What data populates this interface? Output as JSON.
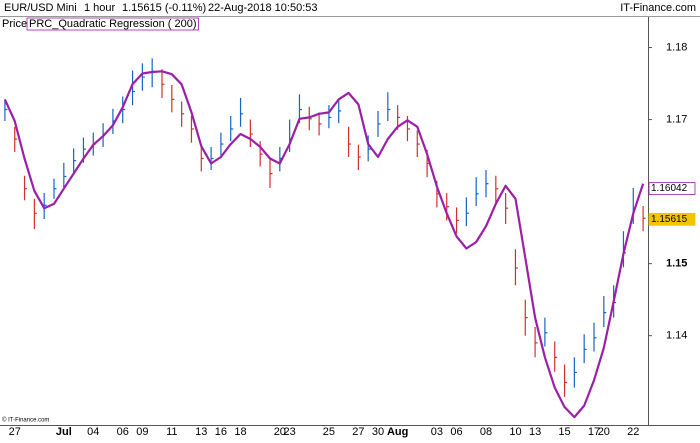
{
  "header": {
    "instrument": "EUR/USD Mini",
    "timeframe": "1 hour",
    "quote": "1.15615 (-0.11%)",
    "datetime": "22-Aug-2018 10:50:53",
    "brand": "IT-Finance.com"
  },
  "footer": "© IT-Finance.com",
  "chart_data": {
    "type": "ohlc",
    "price_label": "Price",
    "up_color": "#1565c0",
    "down_color": "#d32f2f",
    "categories": [
      null,
      "27",
      null,
      null,
      null,
      null,
      "Jul",
      null,
      null,
      "04",
      null,
      null,
      "06",
      null,
      "09",
      null,
      null,
      "11",
      null,
      null,
      "13",
      null,
      "16",
      null,
      "18",
      null,
      null,
      null,
      "20",
      "23",
      null,
      null,
      null,
      "25",
      null,
      null,
      "27",
      null,
      "30",
      null,
      "Aug",
      null,
      null,
      null,
      "03",
      null,
      "06",
      null,
      null,
      "08",
      null,
      null,
      "10",
      null,
      "13",
      null,
      null,
      "15",
      null,
      null,
      "17",
      "20",
      null,
      null,
      "22",
      null
    ],
    "close": [
      1.1714,
      1.1673,
      1.1604,
      1.157,
      1.1581,
      1.1604,
      1.1621,
      1.1643,
      1.1659,
      1.1666,
      1.168,
      1.1698,
      1.1714,
      1.1739,
      1.1759,
      1.1767,
      1.1749,
      1.1728,
      1.1708,
      1.1687,
      1.1646,
      1.1646,
      1.1666,
      1.1687,
      1.1708,
      1.168,
      1.1652,
      1.1625,
      1.1646,
      1.1673,
      1.1714,
      1.1701,
      1.1694,
      1.1703,
      1.1712,
      1.1666,
      1.1648,
      1.1659,
      1.1694,
      1.1714,
      1.1703,
      1.1687,
      1.1666,
      1.1639,
      1.1597,
      1.1579,
      1.156,
      1.157,
      1.1597,
      1.1611,
      1.1604,
      1.1577,
      1.1494,
      1.1425,
      1.139,
      1.1404,
      1.137,
      1.1335,
      1.1349,
      1.1381,
      1.1397,
      1.1432,
      1.1446,
      1.1515,
      1.1577,
      1.1563
    ],
    "high": [
      1.1728,
      1.169,
      1.1622,
      1.159,
      1.1598,
      1.1618,
      1.164,
      1.166,
      1.1675,
      1.1682,
      1.1695,
      1.1715,
      1.1732,
      1.1768,
      1.1778,
      1.1785,
      1.177,
      1.1748,
      1.1725,
      1.1705,
      1.1665,
      1.1662,
      1.1682,
      1.1705,
      1.173,
      1.17,
      1.167,
      1.1645,
      1.1662,
      1.17,
      1.1735,
      1.1718,
      1.171,
      1.172,
      1.1728,
      1.169,
      1.1665,
      1.1678,
      1.1712,
      1.1738,
      1.172,
      1.1705,
      1.1685,
      1.1658,
      1.1615,
      1.1598,
      1.1578,
      1.1592,
      1.162,
      1.163,
      1.1622,
      1.1598,
      1.152,
      1.145,
      1.1412,
      1.1425,
      1.1392,
      1.136,
      1.137,
      1.1402,
      1.1418,
      1.1455,
      1.147,
      1.1545,
      1.1605,
      1.158
    ],
    "low": [
      1.1698,
      1.1655,
      1.1588,
      1.1548,
      1.1562,
      1.159,
      1.1606,
      1.1625,
      1.164,
      1.165,
      1.1662,
      1.168,
      1.1695,
      1.172,
      1.174,
      1.1745,
      1.173,
      1.171,
      1.169,
      1.1668,
      1.1628,
      1.163,
      1.165,
      1.167,
      1.169,
      1.1662,
      1.1635,
      1.1605,
      1.1628,
      1.1655,
      1.1695,
      1.1685,
      1.1678,
      1.1688,
      1.1695,
      1.1648,
      1.163,
      1.1642,
      1.1676,
      1.1698,
      1.1686,
      1.167,
      1.1648,
      1.162,
      1.1578,
      1.156,
      1.1542,
      1.1552,
      1.158,
      1.1592,
      1.1585,
      1.1555,
      1.147,
      1.14,
      1.137,
      1.1385,
      1.135,
      1.1315,
      1.1328,
      1.1362,
      1.1378,
      1.1412,
      1.1425,
      1.1495,
      1.1555,
      1.1545
    ],
    "series": [
      {
        "name": "PRC_Quadratic Regression ( 200)",
        "color": "#9c1fa8",
        "values": [
          1.1728,
          1.1698,
          1.1646,
          1.1601,
          1.1577,
          1.1583,
          1.1604,
          1.1625,
          1.1646,
          1.1665,
          1.1677,
          1.1692,
          1.1717,
          1.1749,
          1.1764,
          1.1766,
          1.1767,
          1.1763,
          1.1749,
          1.171,
          1.1663,
          1.1639,
          1.1648,
          1.1666,
          1.168,
          1.1673,
          1.1662,
          1.1646,
          1.1639,
          1.1666,
          1.1701,
          1.1703,
          1.1708,
          1.171,
          1.1728,
          1.1737,
          1.1721,
          1.1666,
          1.1648,
          1.1673,
          1.169,
          1.1699,
          1.169,
          1.1652,
          1.1607,
          1.157,
          1.1538,
          1.1521,
          1.153,
          1.1552,
          1.1583,
          1.1608,
          1.159,
          1.1508,
          1.1425,
          1.137,
          1.1328,
          1.1301,
          1.1287,
          1.1303,
          1.1338,
          1.1383,
          1.1447,
          1.1514,
          1.157,
          1.1611
        ]
      }
    ],
    "last_price": 1.15615,
    "last_price_color": "#f5c400",
    "indicator_last": 1.16042,
    "ylim": [
      1.1276,
      1.1841
    ],
    "yticks": [
      1.14,
      1.15,
      1.17,
      1.18
    ],
    "grid": false
  }
}
